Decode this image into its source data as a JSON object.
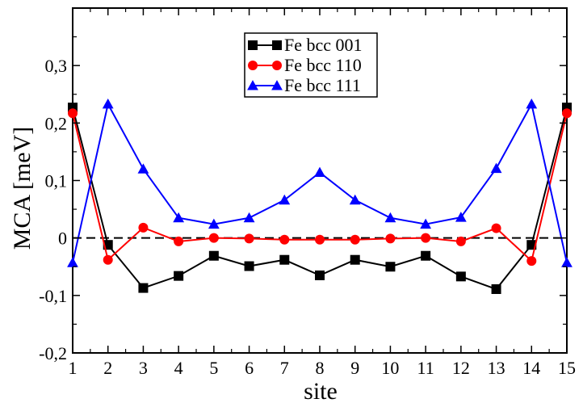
{
  "chart_data": {
    "type": "line",
    "title": "",
    "xlabel": "site",
    "ylabel": "MCA [meV]",
    "xlim": [
      1,
      15
    ],
    "ylim": [
      -0.2,
      0.4
    ],
    "x": [
      1,
      2,
      3,
      4,
      5,
      6,
      7,
      8,
      9,
      10,
      11,
      12,
      13,
      14,
      15
    ],
    "xticks": [
      1,
      2,
      3,
      4,
      5,
      6,
      7,
      8,
      9,
      10,
      11,
      12,
      13,
      14,
      15
    ],
    "xtick_labels": [
      "1",
      "2",
      "3",
      "4",
      "5",
      "6",
      "7",
      "8",
      "9",
      "10",
      "11",
      "12",
      "13",
      "14",
      "15"
    ],
    "yticks": [
      -0.2,
      -0.1,
      0,
      0.1,
      0.2,
      0.3
    ],
    "ytick_labels": [
      "-0,2",
      "-0,1",
      "0",
      "0,1",
      "0,2",
      "0,3"
    ],
    "reference_line": {
      "y": 0,
      "style": "dashed",
      "color": "#000000"
    },
    "legend_position": "top-center",
    "series": [
      {
        "name": "Fe bcc 001",
        "color": "#000000",
        "marker": "square",
        "values": [
          0.227,
          -0.012,
          -0.087,
          -0.066,
          -0.031,
          -0.049,
          -0.038,
          -0.065,
          -0.038,
          -0.05,
          -0.031,
          -0.067,
          -0.089,
          -0.012,
          0.227
        ]
      },
      {
        "name": "Fe bcc 110",
        "color": "#ff0000",
        "marker": "circle",
        "values": [
          0.217,
          -0.038,
          0.018,
          -0.006,
          0.0,
          -0.001,
          -0.003,
          -0.003,
          -0.003,
          -0.001,
          0.0,
          -0.006,
          0.017,
          -0.04,
          0.217
        ]
      },
      {
        "name": "Fe bcc 111",
        "color": "#0000ff",
        "marker": "triangle",
        "values": [
          -0.043,
          0.233,
          0.12,
          0.035,
          0.024,
          0.035,
          0.066,
          0.114,
          0.066,
          0.035,
          0.024,
          0.036,
          0.121,
          0.233,
          -0.043
        ]
      }
    ]
  }
}
